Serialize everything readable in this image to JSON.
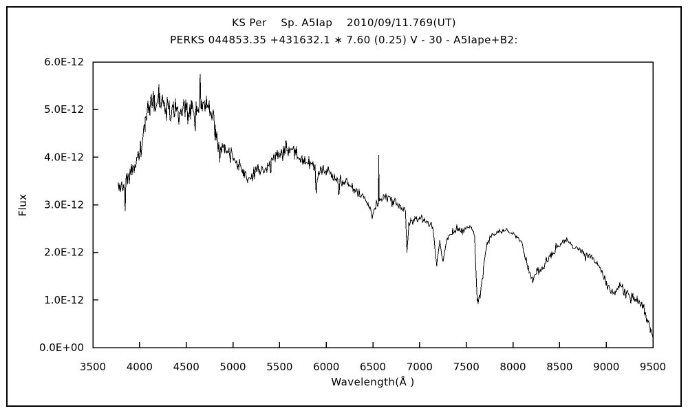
{
  "chart_data": {
    "type": "line",
    "title": "KS Per    Sp. A5Iap    2010/09/11.769(UT)",
    "subtitle": "PERKS 044853.35 +431632.1 ∗ 7.60 (0.25) V - 30 - A5Iape+B2:",
    "xlabel": "Wavelength(Å )",
    "ylabel": "Flux",
    "xlim": [
      3500,
      9500
    ],
    "ylim": [
      0,
      6e-12
    ],
    "x_ticks": [
      3500,
      4000,
      4500,
      5000,
      5500,
      6000,
      6500,
      7000,
      7500,
      8000,
      8500,
      9000,
      9500
    ],
    "y_ticks": [
      {
        "label": "0.0E+00",
        "value": 0
      },
      {
        "label": "1.0E-12",
        "value": 1e-12
      },
      {
        "label": "2.0E-12",
        "value": 2e-12
      },
      {
        "label": "3.0E-12",
        "value": 3e-12
      },
      {
        "label": "4.0E-12",
        "value": 4e-12
      },
      {
        "label": "5.0E-12",
        "value": 5e-12
      },
      {
        "label": "6.0E-12",
        "value": 6e-12
      }
    ],
    "grid": false,
    "legend": null,
    "line_color": "#000000",
    "background_color": "#ffffff",
    "flux_unit_scale": 1e-12,
    "sample_step_angstrom": 7.37,
    "noise_seed": 20100911,
    "series": [
      {
        "name": "KS Per spectrum",
        "x_start": 3773,
        "x_end": 9500,
        "envelope_note": "[wavelength_angstrom, flux_in_1e-12, noise_halfamplitude_in_1e-12]",
        "envelope_points": [
          [
            3773,
            3.3,
            0.22
          ],
          [
            3820,
            3.35,
            0.24
          ],
          [
            3870,
            3.5,
            0.22
          ],
          [
            3920,
            3.7,
            0.2
          ],
          [
            3970,
            3.9,
            0.18
          ],
          [
            4010,
            4.2,
            0.2
          ],
          [
            4060,
            4.8,
            0.2
          ],
          [
            4110,
            5.1,
            0.22
          ],
          [
            4160,
            5.25,
            0.22
          ],
          [
            4210,
            5.3,
            0.22
          ],
          [
            4260,
            5.2,
            0.24
          ],
          [
            4310,
            5.05,
            0.25
          ],
          [
            4360,
            4.95,
            0.26
          ],
          [
            4410,
            4.95,
            0.25
          ],
          [
            4460,
            5.0,
            0.25
          ],
          [
            4510,
            4.9,
            0.28
          ],
          [
            4560,
            4.85,
            0.3
          ],
          [
            4610,
            4.95,
            0.3
          ],
          [
            4660,
            5.15,
            0.26
          ],
          [
            4710,
            5.1,
            0.24
          ],
          [
            4760,
            5.0,
            0.22
          ],
          [
            4810,
            4.55,
            0.2
          ],
          [
            4861,
            4.1,
            0.18
          ],
          [
            4910,
            4.2,
            0.16
          ],
          [
            4960,
            4.1,
            0.15
          ],
          [
            5010,
            3.95,
            0.15
          ],
          [
            5060,
            3.85,
            0.14
          ],
          [
            5110,
            3.65,
            0.14
          ],
          [
            5160,
            3.55,
            0.13
          ],
          [
            5210,
            3.6,
            0.13
          ],
          [
            5310,
            3.75,
            0.13
          ],
          [
            5410,
            3.9,
            0.13
          ],
          [
            5510,
            4.05,
            0.14
          ],
          [
            5560,
            4.2,
            0.14
          ],
          [
            5610,
            4.1,
            0.13
          ],
          [
            5660,
            4.15,
            0.13
          ],
          [
            5710,
            4.0,
            0.12
          ],
          [
            5810,
            3.9,
            0.12
          ],
          [
            5870,
            3.8,
            0.1
          ],
          [
            5896,
            3.3,
            0.08
          ],
          [
            5925,
            3.75,
            0.1
          ],
          [
            6000,
            3.7,
            0.12
          ],
          [
            6100,
            3.55,
            0.11
          ],
          [
            6200,
            3.45,
            0.1
          ],
          [
            6300,
            3.3,
            0.1
          ],
          [
            6400,
            3.15,
            0.09
          ],
          [
            6460,
            3.0,
            0.09
          ],
          [
            6495,
            2.75,
            0.1
          ],
          [
            6525,
            3.0,
            0.08
          ],
          [
            6559,
            3.05,
            0.04
          ],
          [
            6563,
            4.05,
            0.02
          ],
          [
            6567,
            3.1,
            0.05
          ],
          [
            6610,
            3.15,
            0.08
          ],
          [
            6700,
            3.12,
            0.07
          ],
          [
            6780,
            3.0,
            0.07
          ],
          [
            6850,
            2.85,
            0.06
          ],
          [
            6865,
            2.0,
            0.04
          ],
          [
            6885,
            2.6,
            0.06
          ],
          [
            6950,
            2.72,
            0.07
          ],
          [
            7050,
            2.65,
            0.07
          ],
          [
            7140,
            2.55,
            0.07
          ],
          [
            7185,
            1.72,
            0.07
          ],
          [
            7215,
            2.25,
            0.07
          ],
          [
            7250,
            1.8,
            0.08
          ],
          [
            7290,
            2.25,
            0.06
          ],
          [
            7350,
            2.42,
            0.06
          ],
          [
            7450,
            2.5,
            0.06
          ],
          [
            7555,
            2.52,
            0.05
          ],
          [
            7590,
            2.35,
            0.04
          ],
          [
            7618,
            0.98,
            0.08
          ],
          [
            7650,
            1.1,
            0.1
          ],
          [
            7685,
            1.72,
            0.06
          ],
          [
            7725,
            2.2,
            0.05
          ],
          [
            7800,
            2.4,
            0.05
          ],
          [
            7900,
            2.47,
            0.05
          ],
          [
            8000,
            2.4,
            0.05
          ],
          [
            8090,
            2.25,
            0.05
          ],
          [
            8160,
            1.7,
            0.06
          ],
          [
            8210,
            1.45,
            0.08
          ],
          [
            8255,
            1.6,
            0.08
          ],
          [
            8330,
            1.7,
            0.07
          ],
          [
            8400,
            1.9,
            0.06
          ],
          [
            8470,
            2.1,
            0.06
          ],
          [
            8530,
            2.2,
            0.05
          ],
          [
            8575,
            2.3,
            0.05
          ],
          [
            8640,
            2.1,
            0.05
          ],
          [
            8700,
            2.05,
            0.05
          ],
          [
            8760,
            2.0,
            0.05
          ],
          [
            8850,
            1.9,
            0.06
          ],
          [
            8940,
            1.65,
            0.06
          ],
          [
            9000,
            1.35,
            0.07
          ],
          [
            9080,
            1.1,
            0.07
          ],
          [
            9150,
            1.35,
            0.08
          ],
          [
            9210,
            1.1,
            0.08
          ],
          [
            9270,
            1.1,
            0.09
          ],
          [
            9330,
            1.0,
            0.09
          ],
          [
            9390,
            0.9,
            0.09
          ],
          [
            9440,
            0.6,
            0.08
          ],
          [
            9470,
            0.4,
            0.07
          ],
          [
            9500,
            0.22,
            0.05
          ]
        ],
        "features": [
          {
            "wavelength": 6563,
            "type": "emission-spike",
            "peak_flux_1e-12": 4.05
          },
          {
            "wavelength": 6865,
            "type": "absorption-dip",
            "min_flux_1e-12": 2.0
          },
          {
            "wavelength": 7185,
            "type": "absorption-dip",
            "min_flux_1e-12": 1.7
          },
          {
            "wavelength": 7618,
            "type": "absorption-dip",
            "min_flux_1e-12": 0.95
          },
          {
            "wavelength": 8220,
            "type": "absorption-dip",
            "min_flux_1e-12": 1.45
          },
          {
            "wavelength": 9080,
            "type": "absorption-dip",
            "min_flux_1e-12": 1.1
          }
        ]
      }
    ]
  }
}
